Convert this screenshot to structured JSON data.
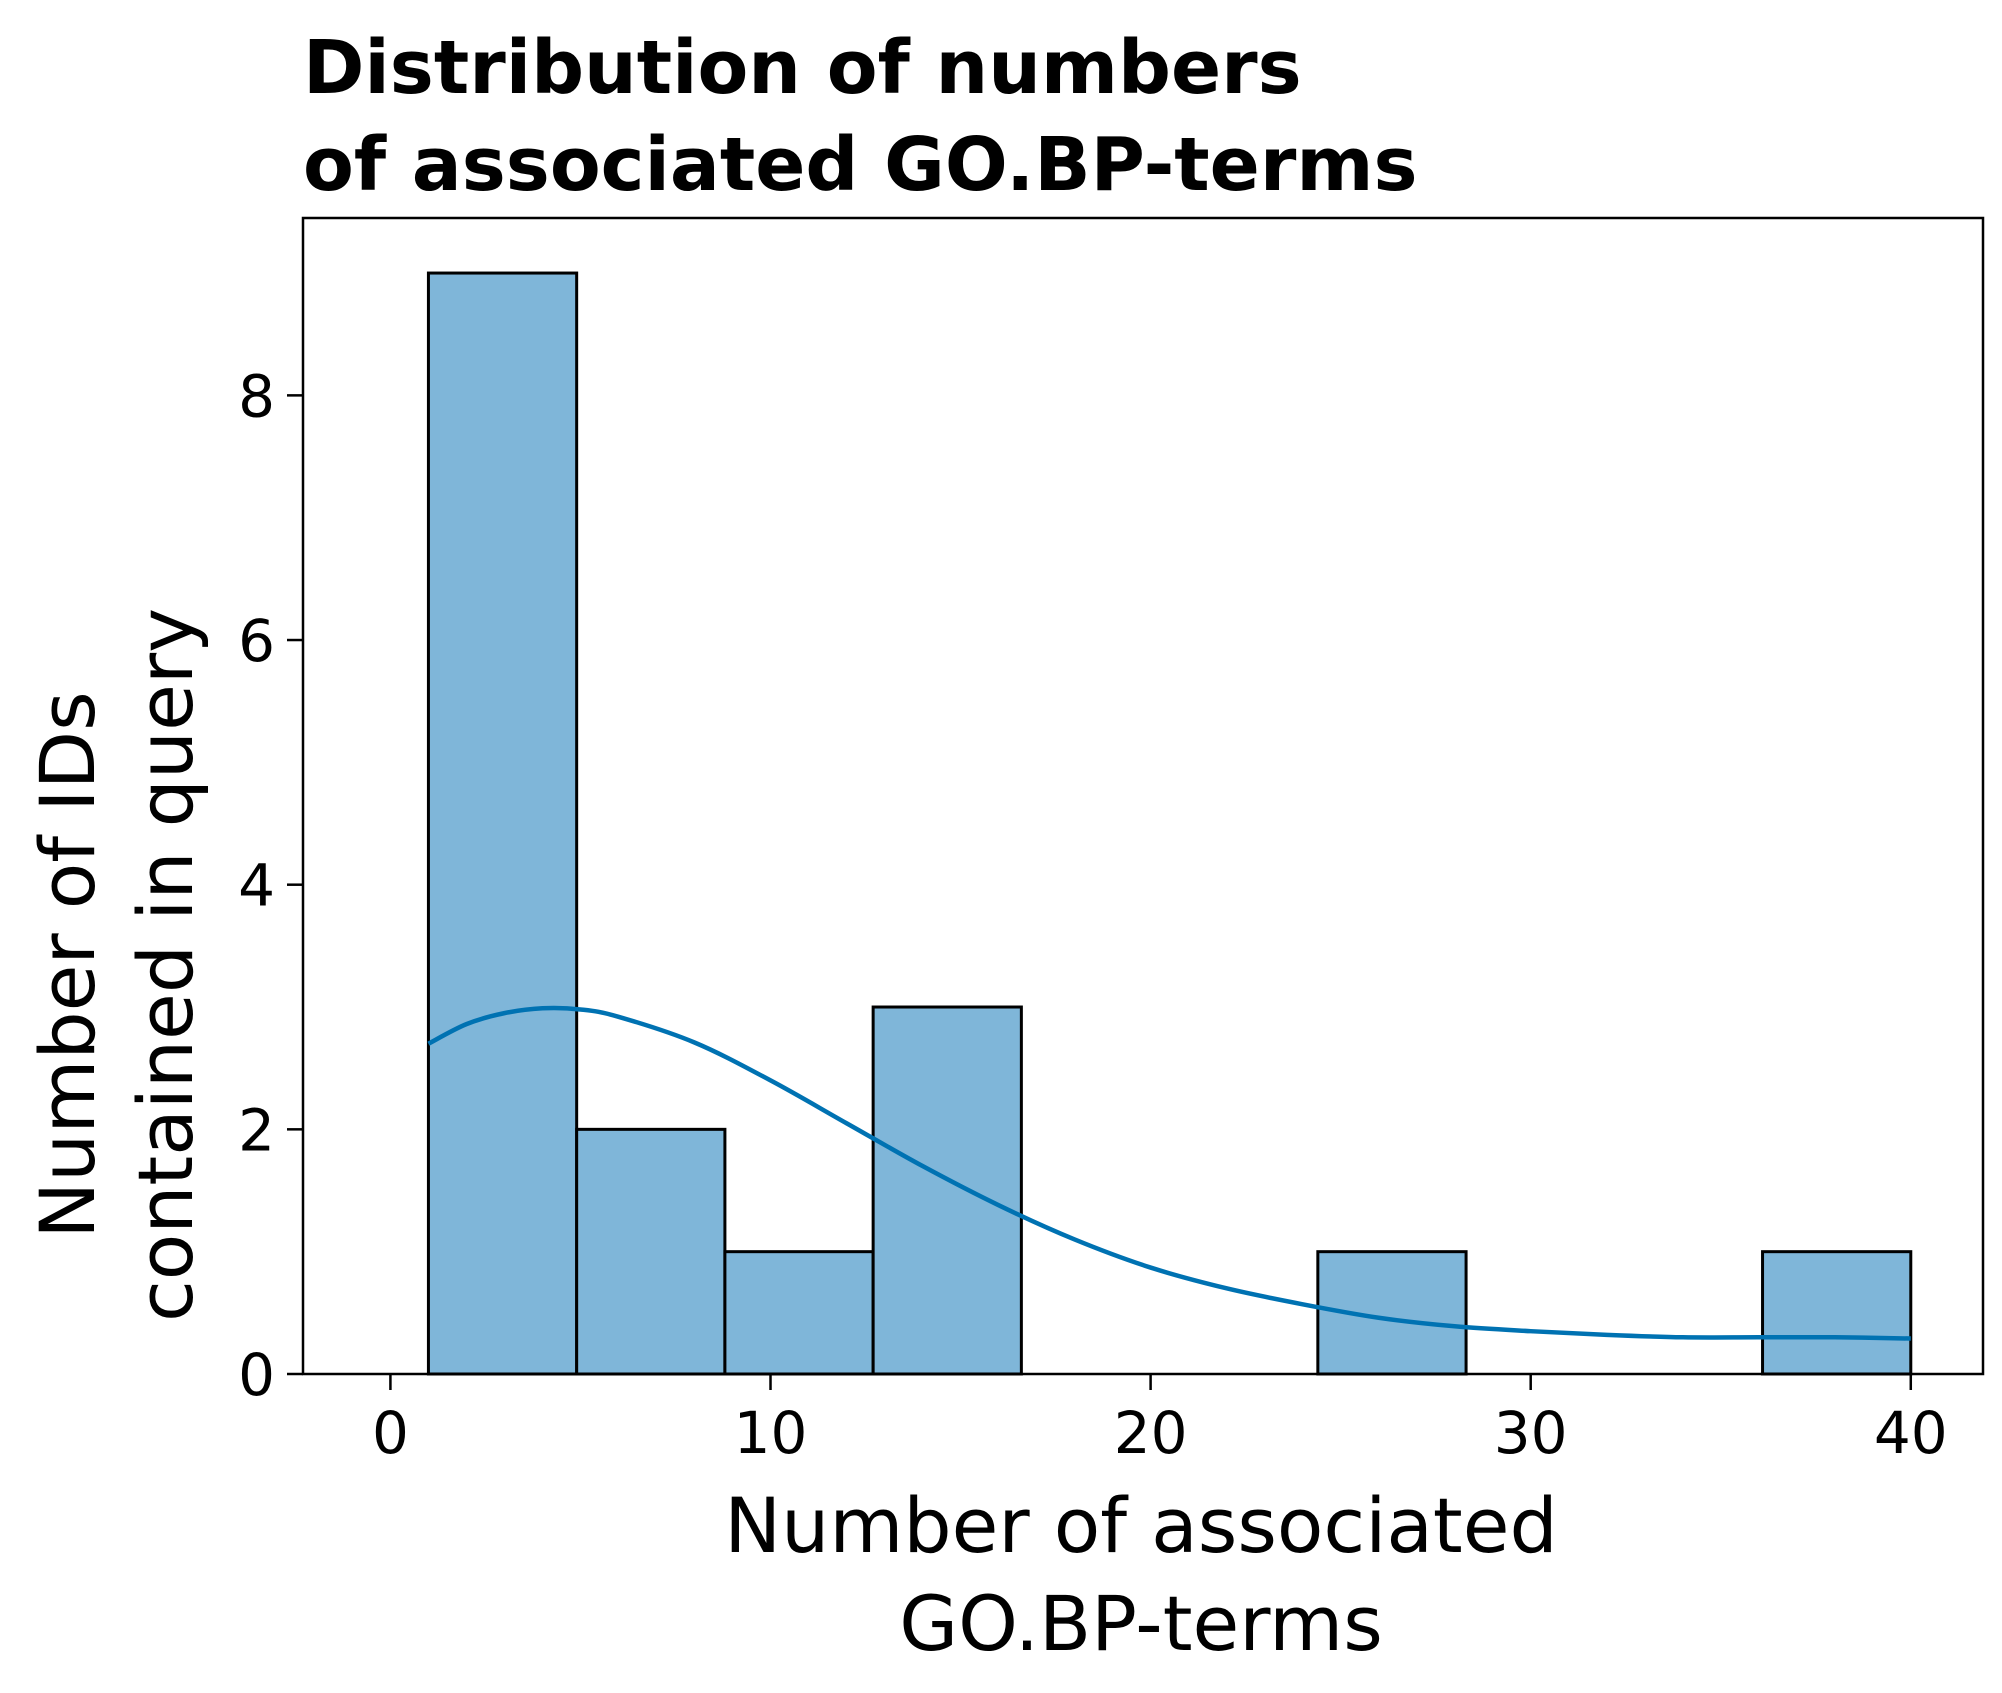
{
  "chart_data": {
    "type": "bar",
    "title_lines": [
      "Distribution of numbers",
      "of associated GO.BP-terms"
    ],
    "xlabel_lines": [
      "Number of associated",
      "GO.BP-terms"
    ],
    "ylabel_lines": [
      "Number of IDs",
      "contained in query"
    ],
    "xlim": [
      -2.3,
      41.9
    ],
    "ylim": [
      0,
      9.45
    ],
    "x_ticks": [
      0,
      10,
      20,
      30,
      40
    ],
    "y_ticks": [
      0,
      2,
      4,
      6,
      8
    ],
    "bins": [
      {
        "x0": 1.0,
        "x1": 4.9,
        "count": 9
      },
      {
        "x0": 4.9,
        "x1": 8.8,
        "count": 2
      },
      {
        "x0": 8.8,
        "x1": 12.7,
        "count": 1
      },
      {
        "x0": 12.7,
        "x1": 16.6,
        "count": 3
      },
      {
        "x0": 16.6,
        "x1": 20.5,
        "count": 0
      },
      {
        "x0": 20.5,
        "x1": 24.4,
        "count": 0
      },
      {
        "x0": 24.4,
        "x1": 28.3,
        "count": 1
      },
      {
        "x0": 28.3,
        "x1": 32.2,
        "count": 0
      },
      {
        "x0": 32.2,
        "x1": 36.1,
        "count": 0
      },
      {
        "x0": 36.1,
        "x1": 40.0,
        "count": 1
      }
    ],
    "kde": {
      "x": [
        1,
        2,
        3,
        4,
        5,
        6,
        8,
        10,
        12,
        14,
        16,
        18,
        20,
        22,
        24,
        26,
        28,
        30,
        32,
        34,
        36,
        38,
        40
      ],
      "y": [
        2.7,
        2.86,
        2.95,
        2.99,
        2.98,
        2.92,
        2.71,
        2.4,
        2.05,
        1.7,
        1.38,
        1.1,
        0.87,
        0.7,
        0.57,
        0.46,
        0.39,
        0.35,
        0.32,
        0.3,
        0.3,
        0.3,
        0.29
      ]
    },
    "grid": false,
    "colors": {
      "bar_fill": "#7fb6d9",
      "bar_edge": "#000000",
      "kde_line": "#0072b2",
      "axis": "#000000"
    }
  }
}
